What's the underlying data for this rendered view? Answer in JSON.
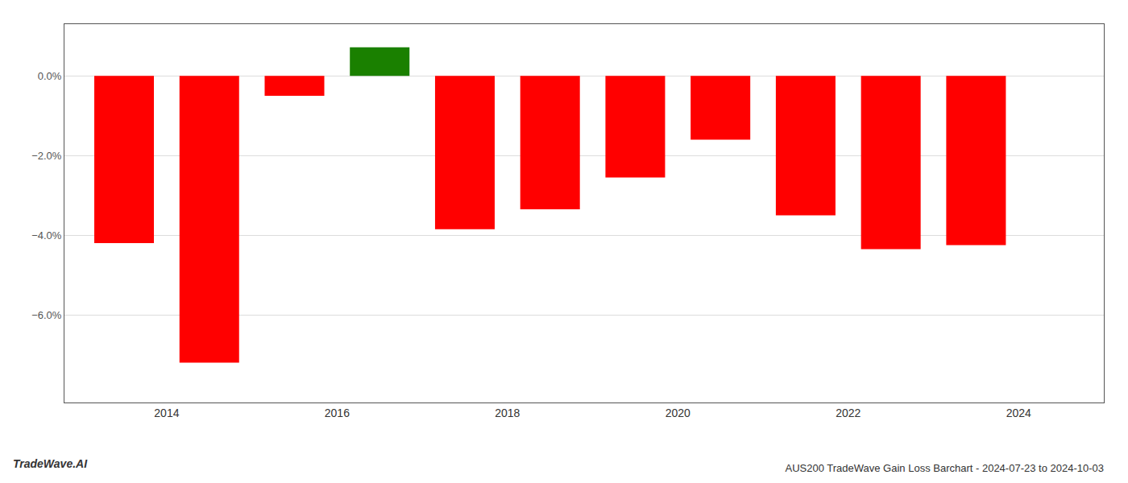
{
  "chart_data": {
    "type": "bar",
    "title": "AUS200 TradeWave Gain Loss Barchart - 2024-07-23 to 2024-10-03",
    "annotations": [
      "TradeWave.AI"
    ],
    "x": [
      2013.5,
      2014.5,
      2015.5,
      2016.5,
      2017.5,
      2018.5,
      2019.5,
      2020.5,
      2021.5,
      2022.5,
      2023.5
    ],
    "values": [
      -4.2,
      -7.2,
      -0.5,
      0.72,
      -3.85,
      -3.35,
      -2.55,
      -1.6,
      -3.5,
      -4.35,
      -4.25
    ],
    "colors": [
      "#ff0000",
      "#ff0000",
      "#ff0000",
      "#1a8000",
      "#ff0000",
      "#ff0000",
      "#ff0000",
      "#ff0000",
      "#ff0000",
      "#ff0000",
      "#ff0000"
    ],
    "xlim": [
      2012.8,
      2025.0
    ],
    "xticks": [
      2014,
      2016,
      2018,
      2020,
      2022,
      2024
    ],
    "ylim": [
      -8.2,
      1.3
    ],
    "yticks": [
      {
        "value": 0.0,
        "label": "0.0%"
      },
      {
        "value": -2.0,
        "label": "−2.0%"
      },
      {
        "value": -4.0,
        "label": "−4.0%"
      },
      {
        "value": -6.0,
        "label": "−6.0%"
      }
    ],
    "grid": true
  }
}
